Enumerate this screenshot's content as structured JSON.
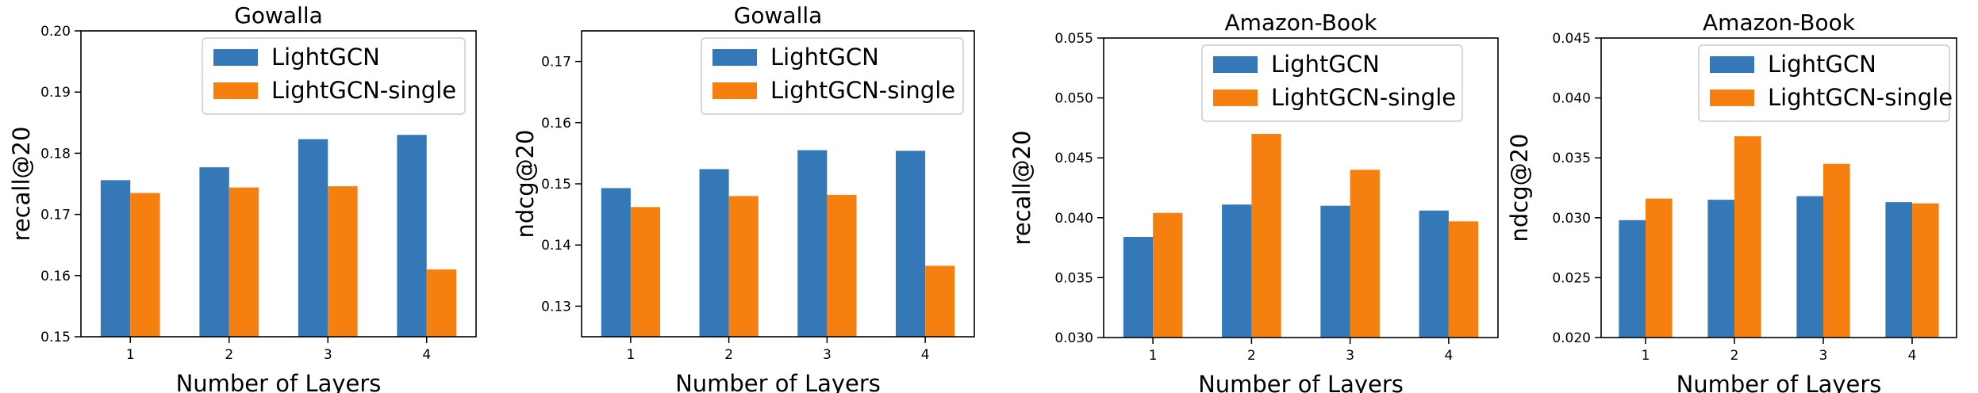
{
  "figure": {
    "colors": {
      "LightGCN": "#3478b8",
      "LightGCN-single": "#f57f0f"
    }
  },
  "chart_data": [
    {
      "type": "bar",
      "title": "Gowalla",
      "xlabel": "Number of Layers",
      "ylabel": "recall@20",
      "categories": [
        "1",
        "2",
        "3",
        "4"
      ],
      "ylim": [
        0.15,
        0.2
      ],
      "yticks": [
        "0.15",
        "0.16",
        "0.17",
        "0.18",
        "0.19",
        "0.20"
      ],
      "legend_position": "top-right",
      "grid": false,
      "series": [
        {
          "name": "LightGCN",
          "values": [
            0.1756,
            0.1777,
            0.1823,
            0.183
          ]
        },
        {
          "name": "LightGCN-single",
          "values": [
            0.1735,
            0.1744,
            0.1746,
            0.161
          ]
        }
      ]
    },
    {
      "type": "bar",
      "title": "Gowalla",
      "xlabel": "Number of Layers",
      "ylabel": "ndcg@20",
      "categories": [
        "1",
        "2",
        "3",
        "4"
      ],
      "ylim": [
        0.125,
        0.175
      ],
      "yticks": [
        "0.13",
        "0.14",
        "0.15",
        "0.16",
        "0.17"
      ],
      "legend_position": "top-right",
      "grid": false,
      "series": [
        {
          "name": "LightGCN",
          "values": [
            0.1493,
            0.1524,
            0.1555,
            0.1554
          ]
        },
        {
          "name": "LightGCN-single",
          "values": [
            0.1462,
            0.148,
            0.1482,
            0.1366
          ]
        }
      ]
    },
    {
      "type": "bar",
      "title": "Amazon-Book",
      "xlabel": "Number of Layers",
      "ylabel": "recall@20",
      "categories": [
        "1",
        "2",
        "3",
        "4"
      ],
      "ylim": [
        0.03,
        0.055
      ],
      "yticks": [
        "0.030",
        "0.035",
        "0.040",
        "0.045",
        "0.050",
        "0.055"
      ],
      "legend_position": "top-right",
      "grid": false,
      "series": [
        {
          "name": "LightGCN",
          "values": [
            0.0384,
            0.0411,
            0.041,
            0.0406
          ]
        },
        {
          "name": "LightGCN-single",
          "values": [
            0.0404,
            0.047,
            0.044,
            0.0397
          ]
        }
      ]
    },
    {
      "type": "bar",
      "title": "Amazon-Book",
      "xlabel": "Number of Layers",
      "ylabel": "ndcg@20",
      "categories": [
        "1",
        "2",
        "3",
        "4"
      ],
      "ylim": [
        0.02,
        0.045
      ],
      "yticks": [
        "0.020",
        "0.025",
        "0.030",
        "0.035",
        "0.040",
        "0.045"
      ],
      "legend_position": "top-right",
      "grid": false,
      "series": [
        {
          "name": "LightGCN",
          "values": [
            0.0298,
            0.0315,
            0.0318,
            0.0313
          ]
        },
        {
          "name": "LightGCN-single",
          "values": [
            0.0316,
            0.0368,
            0.0345,
            0.0312
          ]
        }
      ]
    }
  ]
}
